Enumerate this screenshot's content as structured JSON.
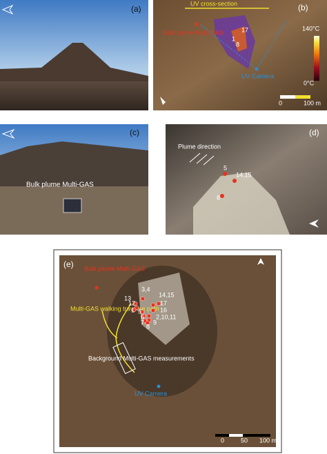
{
  "panels": {
    "a": {
      "label": "(a)"
    },
    "b": {
      "label": "(b)",
      "cross_section": "UV cross-section",
      "multigas": "Bulk plume Multi-GAS",
      "points": [
        "1",
        "17",
        "8"
      ],
      "scale_max": "140°C",
      "scale_min": "0°C",
      "camera": "UV Camera",
      "bar_start": "0",
      "bar_end": "100 m"
    },
    "c": {
      "label": "(c)",
      "multigas": "Bulk plume Multi-GAS"
    },
    "d": {
      "label": "(d)",
      "plume": "Plume direction",
      "points": [
        "5",
        "14,15",
        "8"
      ]
    },
    "e": {
      "label": "(e)",
      "multigas": "Bulk plume Multi-GAS",
      "path": "Multi-GAS walking traverse path",
      "background": "Background Multi-GAS measurements",
      "camera": "UV Camera",
      "points": [
        "3,4",
        "13",
        "14,15",
        "12",
        "17",
        "1",
        "16",
        "5",
        "6",
        "2,10,11",
        "7",
        "9",
        "8"
      ],
      "bar_start": "0",
      "bar_mid": "50",
      "bar_end": "100 m"
    }
  }
}
